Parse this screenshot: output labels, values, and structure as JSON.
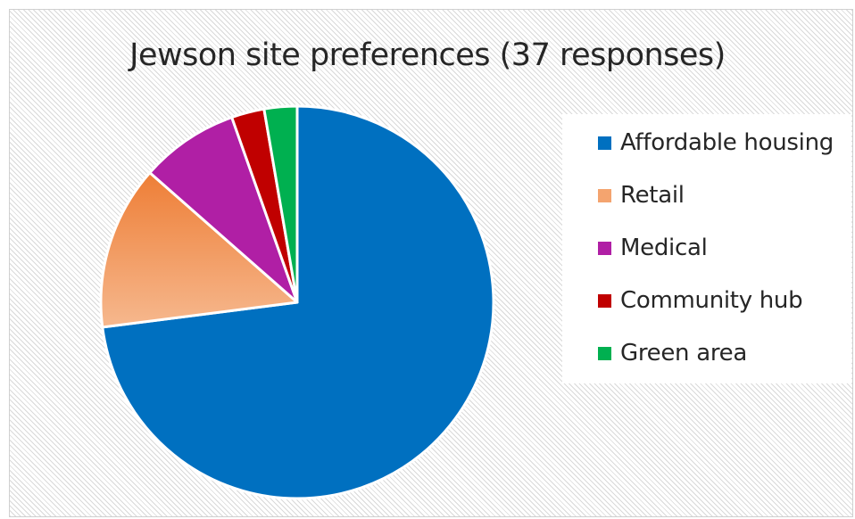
{
  "chart_data": {
    "type": "pie",
    "title": "Jewson site preferences (37 responses)",
    "categories": [
      "Affordable housing",
      "Retail",
      "Medical",
      "Community hub",
      "Green area"
    ],
    "values": [
      27,
      5,
      3,
      1,
      1
    ],
    "colors": [
      "#0070C0",
      "#F4A46F",
      "#B01FA5",
      "#C00000",
      "#00B050"
    ],
    "start_angle_deg": 0,
    "direction": "clockwise",
    "legend_position": "right"
  }
}
